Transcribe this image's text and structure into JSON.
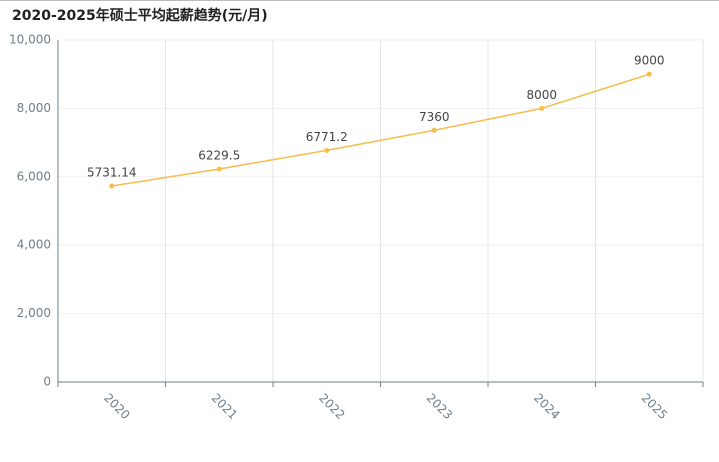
{
  "chart_data": {
    "type": "line",
    "title": "2020-2025年硕士平均起薪趋势(元/月)",
    "categories": [
      "2020",
      "2021",
      "2022",
      "2023",
      "2024",
      "2025"
    ],
    "values": [
      5731.14,
      6229.5,
      6771.2,
      7360,
      8000,
      9000
    ],
    "color": "#f5be4b",
    "ylim": [
      0,
      10000
    ],
    "yticks": [
      0,
      {
        "value": 2000,
        "label": "2,000"
      },
      {
        "value": 4000,
        "label": "4,000"
      },
      {
        "value": 6000,
        "label": "6,000"
      },
      {
        "value": 8000,
        "label": "8,000"
      },
      {
        "value": 10000,
        "label": "10,000"
      }
    ],
    "grid": true
  }
}
